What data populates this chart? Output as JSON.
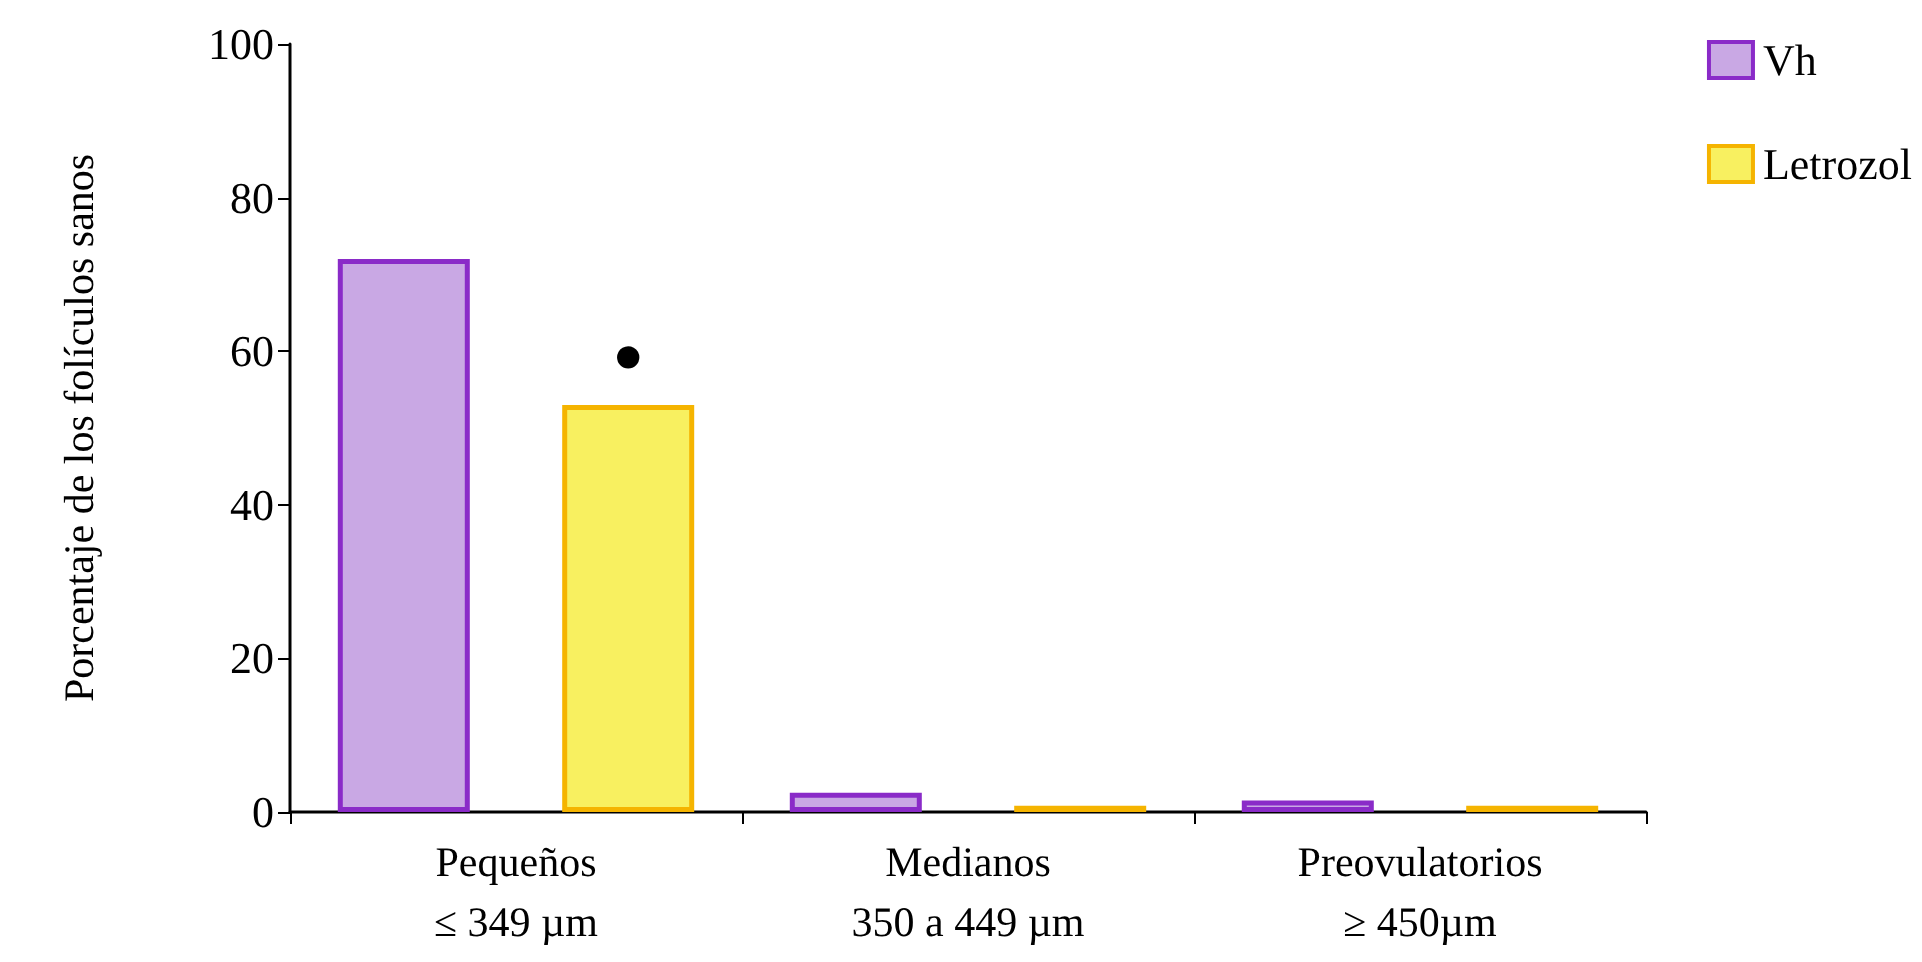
{
  "chart_data": {
    "type": "bar",
    "ylabel": "Porcentaje de los folículos sanos",
    "categories": [
      "Pequeños\n≤ 349 µm",
      "Medianos\n350 a 449 µm",
      "Preovulatorios\n≥ 450µm"
    ],
    "series": [
      {
        "name": "Vh",
        "color": "#c9a8e4",
        "values": [
          72,
          2.5,
          1.5
        ]
      },
      {
        "name": "Letrozol",
        "color": "#f8f060",
        "values": [
          53,
          0.8,
          0.8
        ]
      }
    ],
    "ylim": [
      0,
      100
    ],
    "yticks": [
      0,
      20,
      40,
      60,
      80,
      100
    ],
    "grid": false,
    "legend": "top right",
    "annotations": [
      "●"
    ]
  }
}
